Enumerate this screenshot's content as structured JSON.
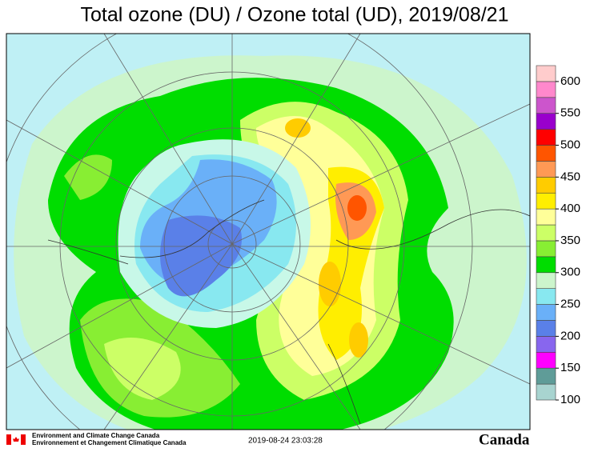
{
  "title": "Total ozone (DU) / Ozone total (UD), 2019/08/21",
  "colorbar": {
    "clim": [
      100,
      625
    ],
    "ticks": [
      100,
      150,
      200,
      250,
      300,
      350,
      400,
      450,
      500,
      550,
      600
    ],
    "colors": [
      "#a8d4d0",
      "#5f9c98",
      "#ff00ff",
      "#8866ee",
      "#5a80e8",
      "#6ab0f8",
      "#88e8f0",
      "#ccf5cc",
      "#00dd00",
      "#88ee33",
      "#ccff66",
      "#ffff99",
      "#ffee00",
      "#ffcc00",
      "#ff9955",
      "#ff5500",
      "#ff0000",
      "#9900cc",
      "#cc55cc",
      "#ff88cc",
      "#ffcccc"
    ]
  },
  "footer": {
    "agency_en": "Environment and Climate Change Canada",
    "agency_fr": "Environnement et Changement Climatique Canada",
    "timestamp": "2019-08-24 23:03:28",
    "wordmark": "Canada"
  }
}
